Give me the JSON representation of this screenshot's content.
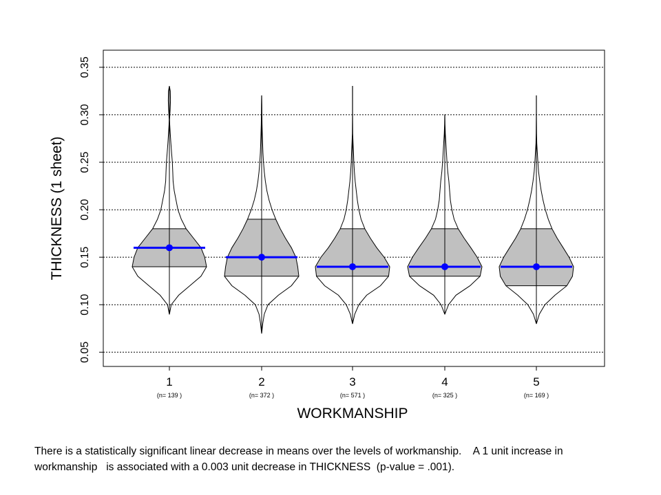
{
  "chart_data": {
    "type": "violin",
    "title": "",
    "xlabel": "WORKMANSHIP",
    "ylabel": "THICKNESS (1 sheet)",
    "ylim": [
      0.035,
      0.368
    ],
    "yticks": [
      "0.05",
      "0.10",
      "0.15",
      "0.20",
      "0.25",
      "0.30",
      "0.35"
    ],
    "grid": "horizontal dotted",
    "categories": [
      "1",
      "2",
      "3",
      "4",
      "5"
    ],
    "n_labels": [
      "(n= 139 )",
      "(n= 372 )",
      "(n= 571 )",
      "(n= 325 )",
      "(n= 169 )"
    ],
    "means": [
      0.16,
      0.15,
      0.14,
      0.14,
      0.14
    ],
    "iqr": [
      [
        0.14,
        0.18
      ],
      [
        0.13,
        0.19
      ],
      [
        0.13,
        0.18
      ],
      [
        0.13,
        0.18
      ],
      [
        0.12,
        0.18
      ]
    ],
    "range": [
      [
        0.09,
        0.33
      ],
      [
        0.07,
        0.32
      ],
      [
        0.08,
        0.33
      ],
      [
        0.09,
        0.3
      ],
      [
        0.08,
        0.32
      ]
    ],
    "violins": [
      [
        [
          0.09,
          0.001
        ],
        [
          0.1,
          0.05
        ],
        [
          0.11,
          0.25
        ],
        [
          0.12,
          0.55
        ],
        [
          0.13,
          0.85
        ],
        [
          0.14,
          1.0
        ],
        [
          0.15,
          0.95
        ],
        [
          0.16,
          0.85
        ],
        [
          0.17,
          0.65
        ],
        [
          0.18,
          0.45
        ],
        [
          0.19,
          0.32
        ],
        [
          0.2,
          0.23
        ],
        [
          0.21,
          0.18
        ],
        [
          0.22,
          0.13
        ],
        [
          0.23,
          0.1
        ],
        [
          0.24,
          0.09
        ],
        [
          0.25,
          0.08
        ],
        [
          0.26,
          0.06
        ],
        [
          0.27,
          0.04
        ],
        [
          0.28,
          0.025
        ],
        [
          0.29,
          0.01
        ],
        [
          0.295,
          0.005
        ],
        [
          0.305,
          0.02
        ],
        [
          0.315,
          0.03
        ],
        [
          0.325,
          0.025
        ],
        [
          0.33,
          0.001
        ]
      ],
      [
        [
          0.07,
          0.001
        ],
        [
          0.08,
          0.03
        ],
        [
          0.09,
          0.07
        ],
        [
          0.1,
          0.17
        ],
        [
          0.11,
          0.45
        ],
        [
          0.12,
          0.8
        ],
        [
          0.13,
          1.0
        ],
        [
          0.14,
          0.97
        ],
        [
          0.15,
          0.92
        ],
        [
          0.16,
          0.8
        ],
        [
          0.17,
          0.64
        ],
        [
          0.18,
          0.5
        ],
        [
          0.19,
          0.38
        ],
        [
          0.2,
          0.28
        ],
        [
          0.21,
          0.2
        ],
        [
          0.22,
          0.14
        ],
        [
          0.23,
          0.1
        ],
        [
          0.24,
          0.07
        ],
        [
          0.25,
          0.05
        ],
        [
          0.26,
          0.035
        ],
        [
          0.27,
          0.025
        ],
        [
          0.28,
          0.018
        ],
        [
          0.29,
          0.012
        ],
        [
          0.3,
          0.008
        ],
        [
          0.31,
          0.005
        ],
        [
          0.32,
          0.001
        ]
      ],
      [
        [
          0.08,
          0.001
        ],
        [
          0.09,
          0.06
        ],
        [
          0.1,
          0.17
        ],
        [
          0.11,
          0.38
        ],
        [
          0.12,
          0.75
        ],
        [
          0.13,
          0.97
        ],
        [
          0.14,
          1.0
        ],
        [
          0.15,
          0.85
        ],
        [
          0.16,
          0.65
        ],
        [
          0.17,
          0.48
        ],
        [
          0.18,
          0.33
        ],
        [
          0.19,
          0.23
        ],
        [
          0.2,
          0.17
        ],
        [
          0.21,
          0.13
        ],
        [
          0.22,
          0.1
        ],
        [
          0.23,
          0.07
        ],
        [
          0.24,
          0.05
        ],
        [
          0.25,
          0.035
        ],
        [
          0.26,
          0.025
        ],
        [
          0.27,
          0.015
        ],
        [
          0.28,
          0.006
        ],
        [
          0.29,
          0.003
        ],
        [
          0.3,
          0.002
        ],
        [
          0.31,
          0.002
        ],
        [
          0.32,
          0.001
        ],
        [
          0.33,
          0.001
        ]
      ],
      [
        [
          0.09,
          0.001
        ],
        [
          0.1,
          0.1
        ],
        [
          0.11,
          0.3
        ],
        [
          0.12,
          0.68
        ],
        [
          0.13,
          0.95
        ],
        [
          0.14,
          1.0
        ],
        [
          0.15,
          0.87
        ],
        [
          0.16,
          0.7
        ],
        [
          0.17,
          0.52
        ],
        [
          0.18,
          0.36
        ],
        [
          0.19,
          0.25
        ],
        [
          0.2,
          0.19
        ],
        [
          0.21,
          0.15
        ],
        [
          0.22,
          0.13
        ],
        [
          0.23,
          0.11
        ],
        [
          0.24,
          0.08
        ],
        [
          0.25,
          0.06
        ],
        [
          0.26,
          0.045
        ],
        [
          0.27,
          0.03
        ],
        [
          0.28,
          0.015
        ],
        [
          0.29,
          0.006
        ],
        [
          0.3,
          0.001
        ]
      ],
      [
        [
          0.08,
          0.001
        ],
        [
          0.09,
          0.08
        ],
        [
          0.1,
          0.23
        ],
        [
          0.11,
          0.5
        ],
        [
          0.12,
          0.82
        ],
        [
          0.13,
          0.97
        ],
        [
          0.14,
          1.0
        ],
        [
          0.15,
          0.88
        ],
        [
          0.16,
          0.72
        ],
        [
          0.17,
          0.56
        ],
        [
          0.18,
          0.42
        ],
        [
          0.19,
          0.32
        ],
        [
          0.2,
          0.24
        ],
        [
          0.21,
          0.18
        ],
        [
          0.22,
          0.13
        ],
        [
          0.23,
          0.09
        ],
        [
          0.24,
          0.06
        ],
        [
          0.25,
          0.04
        ],
        [
          0.26,
          0.025
        ],
        [
          0.27,
          0.012
        ],
        [
          0.28,
          0.005
        ],
        [
          0.29,
          0.003
        ],
        [
          0.3,
          0.002
        ],
        [
          0.31,
          0.002
        ],
        [
          0.32,
          0.001
        ]
      ]
    ],
    "colors": {
      "mean": "#0000ff",
      "iqr_fill": "#c0c0c0",
      "outline": "#000000",
      "grid": "#000000"
    }
  },
  "caption": {
    "line1": "There is a statistically significant linear decrease in means over the levels of workmanship.    A 1 unit increase in",
    "line2": "workmanship   is associated with a 0.003 unit decrease in THICKNESS  (p-value = .001)."
  }
}
